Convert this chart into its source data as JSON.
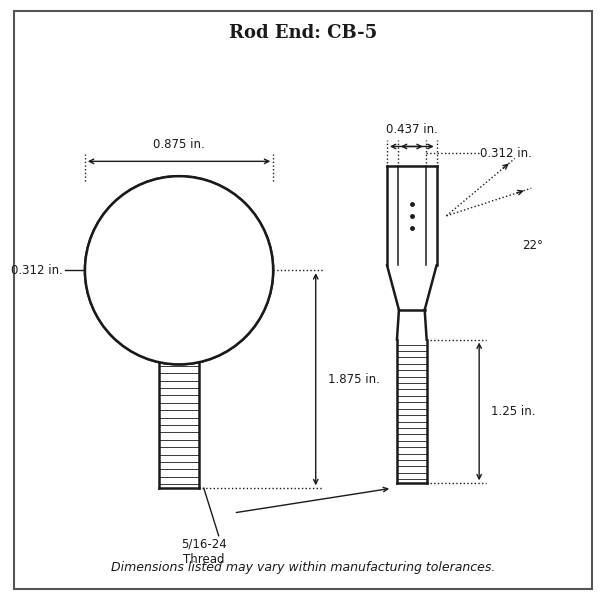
{
  "title": "Rod End: CB-5",
  "footer": "Dimensions listed may vary within manufacturing tolerances.",
  "thread_label": "5/16-24\nThread",
  "dim_875": "0.875 in.",
  "dim_1875": "1.875 in.",
  "dim_0312_left": "0.312 in.",
  "dim_0437": "0.437 in.",
  "dim_0312_right": "0.312 in.",
  "dim_125": "1.25 in.",
  "dim_22deg": "22°",
  "line_color": "#1a1a1a",
  "bg_color": "#ffffff",
  "border_color": "#555555",
  "title_fontsize": 13,
  "label_fontsize": 8.5,
  "footer_fontsize": 9
}
